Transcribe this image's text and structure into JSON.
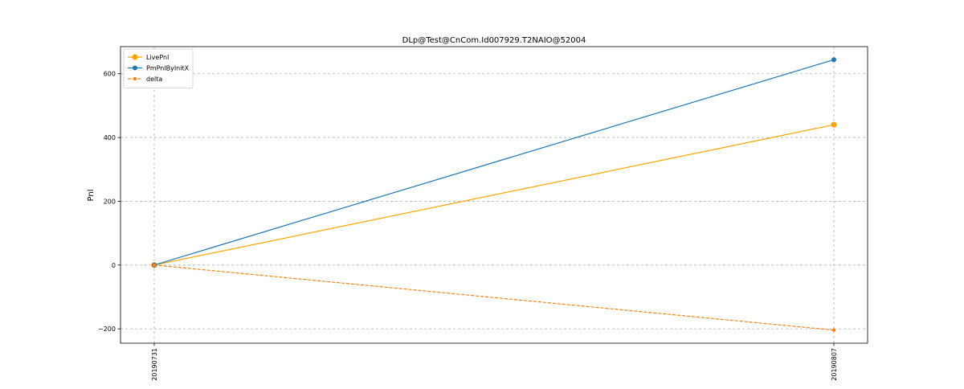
{
  "chart_data": {
    "type": "line",
    "title": "DLp@Test@CnCom.Id007929.T2NAIO@52004",
    "xlabel": "",
    "ylabel": "Pnl",
    "categories": [
      "20190731",
      "20190807"
    ],
    "ylim": [
      -245,
      685
    ],
    "yticks": [
      -200,
      0,
      200,
      400,
      600
    ],
    "ytick_labels": [
      "−200",
      "0",
      "200",
      "400",
      "600"
    ],
    "grid": true,
    "legend": "top-left",
    "series": [
      {
        "name": "LivePnl",
        "values": [
          0,
          440
        ],
        "color": "#ffa500",
        "style": "solid",
        "marker": "large"
      },
      {
        "name": "PmPnlByInitX",
        "values": [
          0,
          644
        ],
        "color": "#1f77b4",
        "style": "solid",
        "marker": "medium"
      },
      {
        "name": "delta",
        "values": [
          0,
          -204
        ],
        "color": "#ff7f0e",
        "style": "dashed",
        "marker": "small"
      }
    ]
  }
}
